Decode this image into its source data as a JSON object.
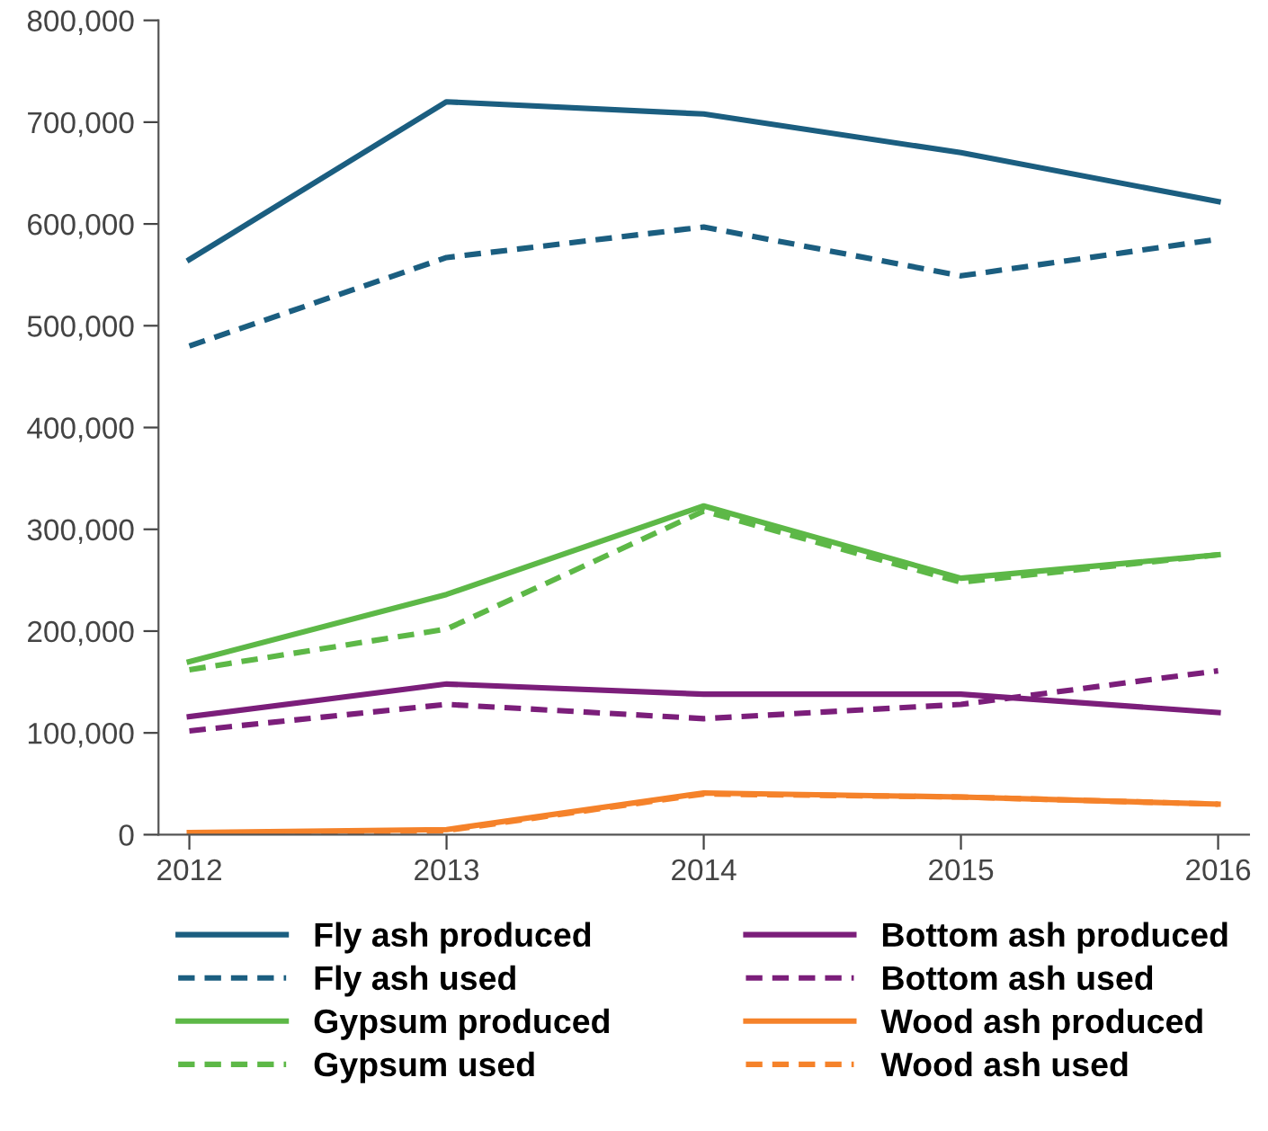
{
  "chart_data": {
    "type": "line",
    "categories": [
      "2012",
      "2013",
      "2014",
      "2015",
      "2016"
    ],
    "series": [
      {
        "name": "Fly ash produced",
        "color": "#1b5e80",
        "line_style": "solid",
        "values": [
          565000,
          720000,
          708000,
          670000,
          622000
        ]
      },
      {
        "name": "Fly ash used",
        "color": "#1b5e80",
        "line_style": "dashed",
        "values": [
          480000,
          567000,
          597000,
          549000,
          585000
        ]
      },
      {
        "name": "Gypsum produced",
        "color": "#5db847",
        "line_style": "solid",
        "values": [
          170000,
          236000,
          323000,
          252000,
          275000
        ]
      },
      {
        "name": "Gypsum used",
        "color": "#5db847",
        "line_style": "dashed",
        "values": [
          162000,
          202000,
          318000,
          248000,
          275000
        ]
      },
      {
        "name": "Bottom ash produced",
        "color": "#7b1e7a",
        "line_style": "solid",
        "values": [
          116000,
          148000,
          138000,
          138000,
          120000
        ]
      },
      {
        "name": "Bottom ash used",
        "color": "#7b1e7a",
        "line_style": "dashed",
        "values": [
          102000,
          128000,
          114000,
          128000,
          161000
        ]
      },
      {
        "name": "Wood ash produced",
        "color": "#f5822a",
        "line_style": "solid",
        "values": [
          2000,
          5000,
          41000,
          37000,
          30000
        ]
      },
      {
        "name": "Wood ash used",
        "color": "#f5822a",
        "line_style": "dashed",
        "values": [
          1000,
          4000,
          40000,
          37000,
          30000
        ]
      }
    ],
    "ylim": [
      0,
      800000
    ],
    "yticks": [
      {
        "value": 0,
        "label": "0"
      },
      {
        "value": 100000,
        "label": "100,000"
      },
      {
        "value": 200000,
        "label": "200,000"
      },
      {
        "value": 300000,
        "label": "300,000"
      },
      {
        "value": 400000,
        "label": "400,000"
      },
      {
        "value": 500000,
        "label": "500,000"
      },
      {
        "value": 600000,
        "label": "600,000"
      },
      {
        "value": 700000,
        "label": "700,000"
      },
      {
        "value": 800000,
        "label": "800,000"
      }
    ],
    "grid": false,
    "legend": "bottom",
    "marker": "none"
  }
}
